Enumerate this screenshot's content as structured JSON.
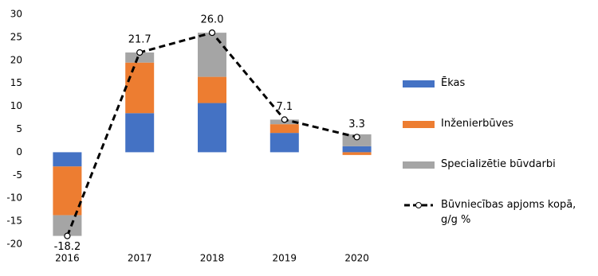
{
  "chart_data": {
    "type": "bar",
    "categories": [
      "2016",
      "2017",
      "2018",
      "2019",
      "2020"
    ],
    "series": [
      {
        "name": "Ēkas",
        "type": "bar",
        "color": "#4472c4",
        "values": [
          -3.1,
          8.5,
          10.7,
          4.2,
          1.3
        ]
      },
      {
        "name": "Inženierbūves",
        "type": "bar",
        "color": "#ed7d31",
        "values": [
          -10.6,
          11.0,
          5.7,
          1.9,
          -0.6
        ]
      },
      {
        "name": "Specializētie būvdarbi",
        "type": "bar",
        "color": "#a5a5a5",
        "values": [
          -4.5,
          2.2,
          9.6,
          1.0,
          2.6
        ]
      },
      {
        "name": "Būvniecības apjoms kopā, g/g %",
        "type": "line",
        "color": "#000000",
        "values": [
          -18.2,
          21.7,
          26.0,
          7.1,
          3.3
        ],
        "value_labels": [
          "-18.2",
          "21.7",
          "26.0",
          "7.1",
          "3.3"
        ]
      }
    ],
    "ylim": [
      -20,
      30
    ],
    "yticks": [
      -20,
      -15,
      -10,
      -5,
      0,
      5,
      10,
      15,
      20,
      25,
      30
    ],
    "grid": false,
    "legend": "right"
  }
}
